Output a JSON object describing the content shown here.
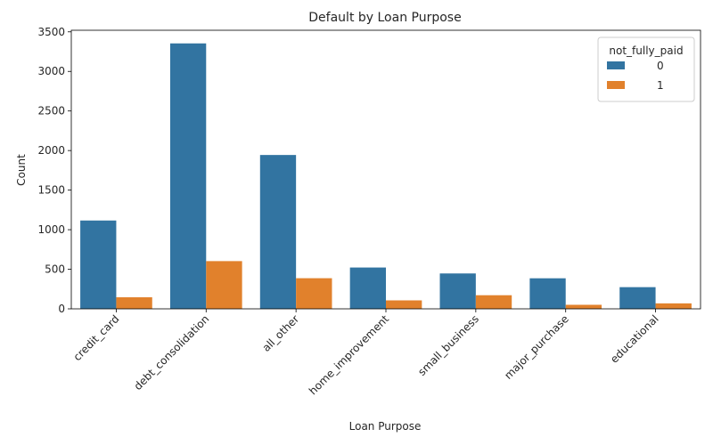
{
  "chart_data": {
    "type": "bar",
    "title": "Default by Loan Purpose",
    "xlabel": "Loan Purpose",
    "ylabel": "Count",
    "ylim": [
      0,
      3520
    ],
    "yticks": [
      0,
      500,
      1000,
      1500,
      2000,
      2500,
      3000,
      3500
    ],
    "categories": [
      "credit_card",
      "debt_consolidation",
      "all_other",
      "home_improvement",
      "small_business",
      "major_purchase",
      "educational"
    ],
    "legend_title": "not_fully_paid",
    "legend_position": "top-right",
    "grid": false,
    "series": [
      {
        "name": "0",
        "color": "#3274a1",
        "values": [
          1116,
          3354,
          1944,
          522,
          447,
          386,
          274
        ]
      },
      {
        "name": "1",
        "color": "#e1812c",
        "values": [
          146,
          603,
          387,
          107,
          172,
          51,
          69
        ]
      }
    ]
  }
}
